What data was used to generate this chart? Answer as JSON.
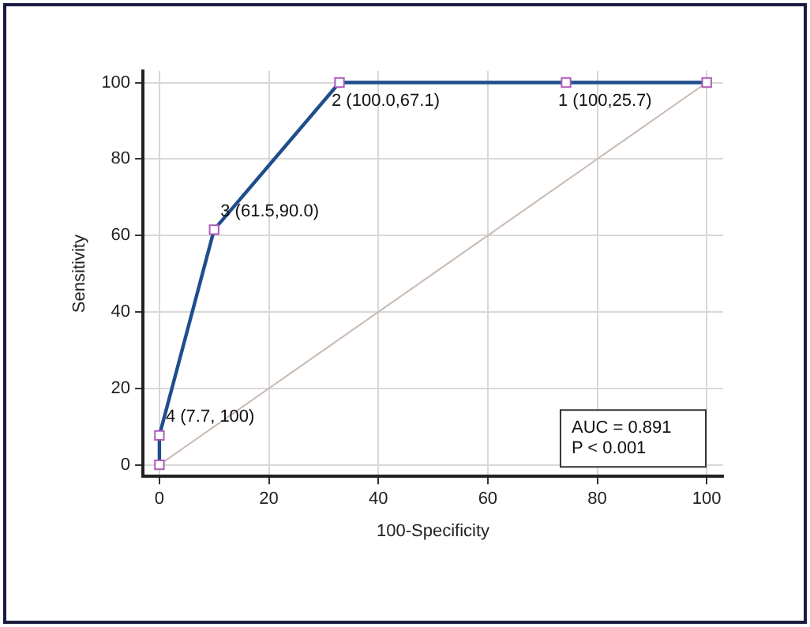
{
  "chart_data": {
    "type": "line",
    "xlabel": "100-Specificity",
    "ylabel": "Sensitivity",
    "xlim": [
      -3,
      103
    ],
    "ylim": [
      -3,
      103
    ],
    "xticks": [
      0,
      20,
      40,
      60,
      80,
      100
    ],
    "yticks": [
      0,
      20,
      40,
      60,
      80,
      100
    ],
    "grid": true,
    "legend": false,
    "series": [
      {
        "color": "#1f4e8c",
        "marker": "square",
        "x": [
          0,
          0,
          10,
          32.9,
          74.3,
          100
        ],
        "values": [
          0,
          7.7,
          61.5,
          100,
          100,
          100
        ]
      },
      {
        "color": "#c9b9b2",
        "marker": "none",
        "x": [
          0,
          100
        ],
        "values": [
          0,
          100
        ]
      }
    ],
    "annotations": [
      {
        "text": "4 (7.7, 100)",
        "x": 0,
        "y": 7.7
      },
      {
        "text": "3 (61.5,90.0)",
        "x": 10,
        "y": 61.5
      },
      {
        "text": "2 (100.0,67.1)",
        "x": 32.9,
        "y": 100
      },
      {
        "text": "1 (100,25.7)",
        "x": 74.3,
        "y": 100
      },
      "AUC = 0.891",
      "P < 0.001"
    ]
  }
}
